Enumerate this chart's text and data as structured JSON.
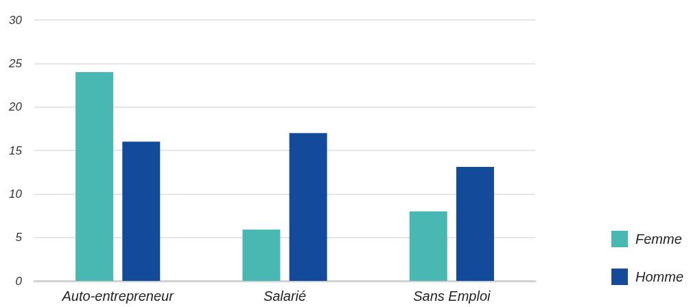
{
  "chart_data": {
    "type": "bar",
    "categories": [
      "Auto-entrepreneur",
      "Salarié",
      "Sans Emploi"
    ],
    "series": [
      {
        "name": "Femme",
        "color": "#4ab8b2",
        "values": [
          24,
          5.9,
          8
        ]
      },
      {
        "name": "Homme",
        "color": "#134a9a",
        "values": [
          16,
          17,
          13.1
        ]
      }
    ],
    "ylim": [
      0,
      30
    ],
    "yticks": [
      0,
      5,
      10,
      15,
      20,
      25,
      30
    ],
    "grid": "y",
    "legend": "right"
  }
}
